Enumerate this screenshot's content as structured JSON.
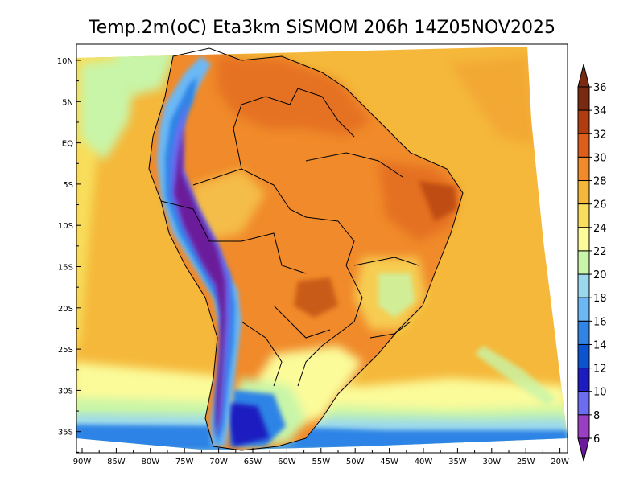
{
  "title": "Temp.2m(oC) Eta3km SiSMOM 206h 14Z05NOV2025",
  "lat_labels": [
    "10N",
    "5N",
    "EQ",
    "5S",
    "10S",
    "15S",
    "20S",
    "25S",
    "30S",
    "35S"
  ],
  "lon_labels": [
    "90W",
    "85W",
    "80W",
    "75W",
    "70W",
    "65W",
    "60W",
    "55W",
    "50W",
    "45W",
    "40W",
    "35W",
    "30W",
    "25W",
    "20W"
  ],
  "colorbar": {
    "labels": [
      "6",
      "8",
      "10",
      "12",
      "14",
      "16",
      "18",
      "20",
      "22",
      "24",
      "26",
      "28",
      "30",
      "32",
      "34",
      "36"
    ],
    "colors": [
      "#6a1a9a",
      "#9a3fc4",
      "#6b6cf0",
      "#1c1cc0",
      "#0c54cf",
      "#2f84e6",
      "#6cb8f5",
      "#9ad8ee",
      "#c8f5a8",
      "#fbfb9a",
      "#f8de5c",
      "#f5b83a",
      "#f08a2a",
      "#dd5e1a",
      "#b03c10",
      "#7a2a10"
    ]
  }
}
